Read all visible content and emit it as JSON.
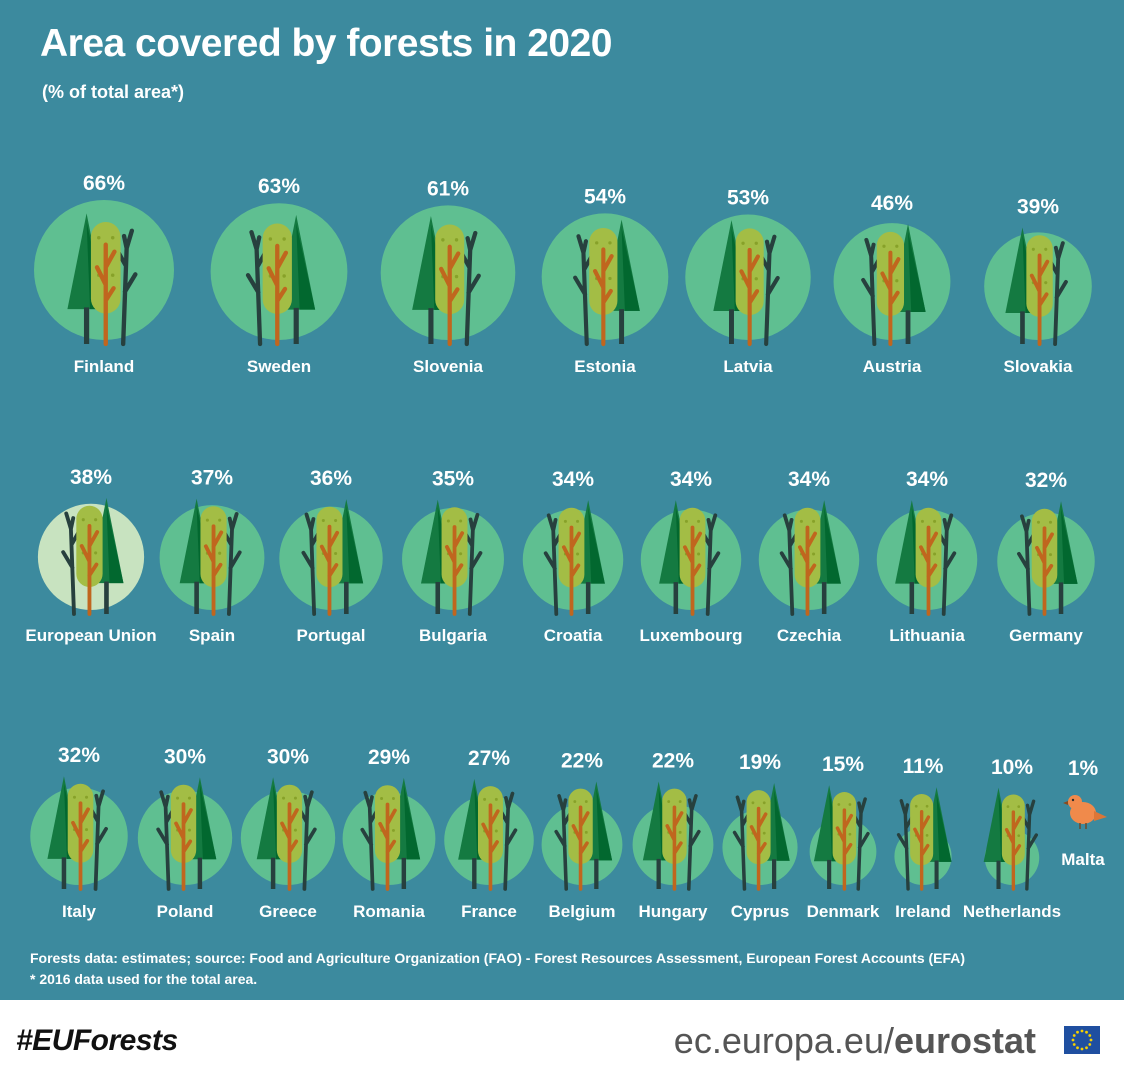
{
  "header": {
    "title": "Area covered by forests in 2020",
    "subtitle": "(% of total area*)"
  },
  "chart_data": {
    "type": "pictogram",
    "title": "Area covered by forests in 2020",
    "subtitle": "(% of total area*)",
    "unit": "%",
    "categories": [
      "Finland",
      "Sweden",
      "Slovenia",
      "Estonia",
      "Latvia",
      "Austria",
      "Slovakia",
      "European Union",
      "Spain",
      "Portugal",
      "Bulgaria",
      "Croatia",
      "Luxembourg",
      "Czechia",
      "Lithuania",
      "Germany",
      "Italy",
      "Poland",
      "Greece",
      "Romania",
      "France",
      "Belgium",
      "Hungary",
      "Cyprus",
      "Denmark",
      "Ireland",
      "Netherlands",
      "Malta"
    ],
    "values": [
      66,
      63,
      61,
      54,
      53,
      46,
      39,
      38,
      37,
      36,
      35,
      34,
      34,
      34,
      34,
      32,
      32,
      30,
      30,
      29,
      27,
      22,
      22,
      19,
      15,
      11,
      10,
      1
    ],
    "labels": [
      "66%",
      "63%",
      "61%",
      "54%",
      "53%",
      "46%",
      "39%",
      "38%",
      "37%",
      "36%",
      "35%",
      "34%",
      "34%",
      "34%",
      "34%",
      "32%",
      "32%",
      "30%",
      "30%",
      "29%",
      "27%",
      "22%",
      "22%",
      "19%",
      "15%",
      "11%",
      "10%",
      "1%"
    ],
    "highlight": "European Union",
    "colors": {
      "background": "#3c8a9e",
      "circle": "#5fbf91",
      "circle_highlight": "#c8e3c0",
      "conifer": "#147a41",
      "deciduous_crown": "#a3bd45",
      "trunk": "#c0661e",
      "bare_tree": "#27403e",
      "bird": "#f08a4b"
    }
  },
  "footnotes": {
    "source": "Forests data: estimates; source: Food and Agriculture Organization (FAO) - Forest Resources Assessment, European Forest Accounts (EFA)",
    "note": "* 2016 data used for the total area."
  },
  "footer": {
    "hashtag": "#EUForests",
    "site_prefix": "ec.europa.eu/",
    "site_brand": "eurostat"
  }
}
